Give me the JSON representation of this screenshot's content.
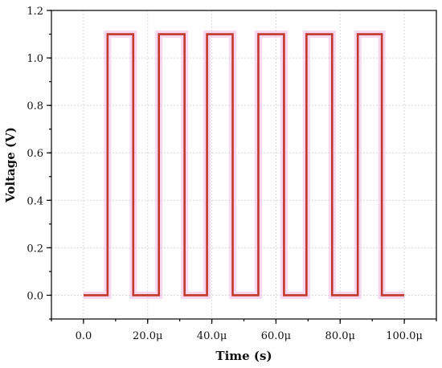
{
  "chart_data": {
    "type": "line",
    "xlabel": "Time (s)",
    "ylabel": "Voltage (V)",
    "xlim": [
      -1e-05,
      0.00011
    ],
    "ylim": [
      -0.1,
      1.2
    ],
    "x_ticks": [
      0,
      2e-05,
      4e-05,
      6e-05,
      8e-05,
      0.0001
    ],
    "x_tick_labels": [
      "0.0",
      "20.0μ",
      "40.0μ",
      "60.0μ",
      "80.0μ",
      "100.0μ"
    ],
    "y_ticks": [
      0,
      0.2,
      0.4,
      0.6,
      0.8,
      1.0,
      1.2
    ],
    "y_tick_labels": [
      "0.0",
      "0.2",
      "0.4",
      "0.6",
      "0.8",
      "1.0",
      "1.2"
    ],
    "grid": true,
    "series": [
      {
        "color": "#c0392b",
        "glow_color": "#f3b6e6",
        "x": [
          0,
          7.5e-06,
          7.5e-06,
          1.55e-05,
          1.55e-05,
          2.35e-05,
          2.35e-05,
          3.15e-05,
          3.15e-05,
          3.85e-05,
          3.85e-05,
          4.65e-05,
          4.65e-05,
          5.45e-05,
          5.45e-05,
          6.25e-05,
          6.25e-05,
          6.95e-05,
          6.95e-05,
          7.75e-05,
          7.75e-05,
          8.55e-05,
          8.55e-05,
          9.3e-05,
          9.3e-05,
          0.0001
        ],
        "y": [
          0,
          0,
          1.1,
          1.1,
          0,
          0,
          1.1,
          1.1,
          0,
          0,
          1.1,
          1.1,
          0,
          0,
          1.1,
          1.1,
          0,
          0,
          1.1,
          1.1,
          0,
          0,
          1.1,
          1.1,
          0,
          0
        ]
      }
    ]
  }
}
